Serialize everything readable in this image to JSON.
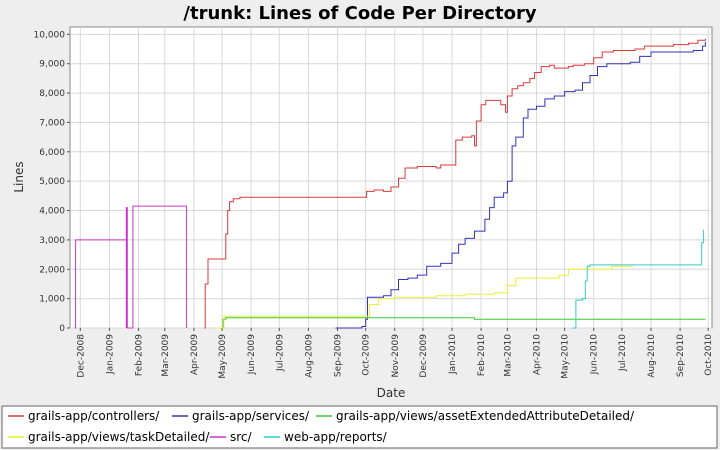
{
  "chart_data": {
    "type": "line",
    "title": "/trunk: Lines of Code Per Directory",
    "xlabel": "Date",
    "ylabel": "Lines",
    "x_range": [
      "2008-11-20",
      "2010-10-05"
    ],
    "ylim": [
      0,
      10250
    ],
    "y_ticks": [
      0,
      1000,
      2000,
      3000,
      4000,
      5000,
      6000,
      7000,
      8000,
      9000,
      10000
    ],
    "y_tick_labels": [
      "0",
      "1,000",
      "2,000",
      "3,000",
      "4,000",
      "5,000",
      "6,000",
      "7,000",
      "8,000",
      "9,000",
      "10,000"
    ],
    "x_ticks": [
      "2008-12-01",
      "2009-01-01",
      "2009-02-01",
      "2009-03-01",
      "2009-04-01",
      "2009-05-01",
      "2009-06-01",
      "2009-07-01",
      "2009-08-01",
      "2009-09-01",
      "2009-10-01",
      "2009-11-01",
      "2009-12-01",
      "2010-01-01",
      "2010-02-01",
      "2010-03-01",
      "2010-04-01",
      "2010-05-01",
      "2010-06-01",
      "2010-07-01",
      "2010-08-01",
      "2010-09-01",
      "2010-10-01"
    ],
    "x_tick_labels": [
      "Dec-2008",
      "Jan-2009",
      "Feb-2009",
      "Mar-2009",
      "Apr-2009",
      "May-2009",
      "Jun-2009",
      "Jul-2009",
      "Aug-2009",
      "Sep-2009",
      "Oct-2009",
      "Nov-2009",
      "Dec-2009",
      "Jan-2010",
      "Feb-2010",
      "Mar-2010",
      "Apr-2010",
      "May-2010",
      "Jun-2010",
      "Jul-2010",
      "Aug-2010",
      "Sep-2010",
      "Oct-2010"
    ],
    "grid": true,
    "legend_position": "bottom",
    "series": [
      {
        "name": "grails-app/controllers/",
        "color": "#d93a3a",
        "points": [
          [
            "2009-04-12",
            0
          ],
          [
            "2009-04-13",
            1500
          ],
          [
            "2009-04-16",
            2350
          ],
          [
            "2009-05-05",
            3200
          ],
          [
            "2009-05-07",
            4000
          ],
          [
            "2009-05-09",
            4300
          ],
          [
            "2009-05-13",
            4400
          ],
          [
            "2009-05-20",
            4450
          ],
          [
            "2009-09-25",
            4450
          ],
          [
            "2009-10-02",
            4650
          ],
          [
            "2009-10-10",
            4700
          ],
          [
            "2009-10-20",
            4650
          ],
          [
            "2009-10-28",
            4800
          ],
          [
            "2009-11-05",
            5100
          ],
          [
            "2009-11-12",
            5450
          ],
          [
            "2009-11-25",
            5500
          ],
          [
            "2009-12-15",
            5450
          ],
          [
            "2009-12-20",
            5550
          ],
          [
            "2010-01-02",
            5550
          ],
          [
            "2010-01-05",
            6400
          ],
          [
            "2010-01-12",
            6500
          ],
          [
            "2010-01-22",
            6550
          ],
          [
            "2010-01-25",
            6200
          ],
          [
            "2010-01-27",
            7050
          ],
          [
            "2010-02-01",
            7600
          ],
          [
            "2010-02-06",
            7750
          ],
          [
            "2010-02-18",
            7750
          ],
          [
            "2010-02-22",
            7600
          ],
          [
            "2010-02-27",
            7350
          ],
          [
            "2010-03-01",
            7900
          ],
          [
            "2010-03-06",
            8150
          ],
          [
            "2010-03-12",
            8250
          ],
          [
            "2010-03-18",
            8350
          ],
          [
            "2010-03-25",
            8500
          ],
          [
            "2010-03-30",
            8700
          ],
          [
            "2010-04-06",
            8900
          ],
          [
            "2010-04-15",
            8950
          ],
          [
            "2010-04-20",
            8850
          ],
          [
            "2010-05-05",
            8900
          ],
          [
            "2010-05-10",
            8950
          ],
          [
            "2010-05-22",
            9000
          ],
          [
            "2010-06-01",
            9200
          ],
          [
            "2010-06-10",
            9400
          ],
          [
            "2010-06-22",
            9450
          ],
          [
            "2010-07-15",
            9500
          ],
          [
            "2010-07-25",
            9600
          ],
          [
            "2010-08-20",
            9600
          ],
          [
            "2010-08-25",
            9650
          ],
          [
            "2010-09-10",
            9700
          ],
          [
            "2010-09-20",
            9800
          ],
          [
            "2010-09-28",
            9850
          ]
        ]
      },
      {
        "name": "grails-app/services/",
        "color": "#3333bb",
        "points": [
          [
            "2009-08-30",
            0
          ],
          [
            "2009-09-25",
            0
          ],
          [
            "2009-09-27",
            50
          ],
          [
            "2009-10-01",
            300
          ],
          [
            "2009-10-03",
            1050
          ],
          [
            "2009-10-20",
            1100
          ],
          [
            "2009-10-28",
            1300
          ],
          [
            "2009-11-05",
            1650
          ],
          [
            "2009-11-15",
            1700
          ],
          [
            "2009-11-25",
            1800
          ],
          [
            "2009-12-05",
            2100
          ],
          [
            "2009-12-20",
            2200
          ],
          [
            "2010-01-01",
            2550
          ],
          [
            "2010-01-08",
            2850
          ],
          [
            "2010-01-15",
            3050
          ],
          [
            "2010-01-25",
            3300
          ],
          [
            "2010-02-05",
            3700
          ],
          [
            "2010-02-10",
            4100
          ],
          [
            "2010-02-15",
            4450
          ],
          [
            "2010-02-25",
            4600
          ],
          [
            "2010-03-01",
            5000
          ],
          [
            "2010-03-06",
            6200
          ],
          [
            "2010-03-10",
            6500
          ],
          [
            "2010-03-18",
            7150
          ],
          [
            "2010-03-23",
            7450
          ],
          [
            "2010-04-01",
            7550
          ],
          [
            "2010-04-10",
            7800
          ],
          [
            "2010-04-20",
            7900
          ],
          [
            "2010-05-01",
            8050
          ],
          [
            "2010-05-12",
            8100
          ],
          [
            "2010-05-20",
            8350
          ],
          [
            "2010-05-28",
            8600
          ],
          [
            "2010-06-05",
            8900
          ],
          [
            "2010-06-15",
            9000
          ],
          [
            "2010-07-10",
            9050
          ],
          [
            "2010-07-20",
            9250
          ],
          [
            "2010-08-01",
            9400
          ],
          [
            "2010-09-15",
            9450
          ],
          [
            "2010-09-25",
            9600
          ],
          [
            "2010-09-28",
            9750
          ]
        ]
      },
      {
        "name": "grails-app/views/assetExtendedAttributeDetailed/",
        "color": "#33cc33",
        "points": [
          [
            "2009-04-28",
            0
          ],
          [
            "2009-05-02",
            300
          ],
          [
            "2009-05-05",
            350
          ],
          [
            "2010-01-20",
            350
          ],
          [
            "2010-01-25",
            300
          ],
          [
            "2010-09-28",
            300
          ]
        ]
      },
      {
        "name": "grails-app/views/taskDetailed/",
        "color": "#eeee33",
        "points": [
          [
            "2009-04-25",
            0
          ],
          [
            "2009-05-03",
            400
          ],
          [
            "2009-09-25",
            400
          ],
          [
            "2009-10-05",
            800
          ],
          [
            "2009-10-15",
            1000
          ],
          [
            "2009-11-01",
            1050
          ],
          [
            "2009-12-15",
            1100
          ],
          [
            "2010-01-15",
            1150
          ],
          [
            "2010-02-15",
            1200
          ],
          [
            "2010-03-01",
            1450
          ],
          [
            "2010-03-10",
            1700
          ],
          [
            "2010-04-10",
            1700
          ],
          [
            "2010-04-25",
            1800
          ],
          [
            "2010-05-05",
            2000
          ],
          [
            "2010-06-05",
            2000
          ],
          [
            "2010-06-20",
            2100
          ],
          [
            "2010-07-12",
            2150
          ]
        ]
      },
      {
        "name": "src/",
        "color": "#cc33cc",
        "points": [
          [
            "2008-11-25",
            0
          ],
          [
            "2008-11-26",
            3000
          ],
          [
            "2009-01-18",
            3000
          ],
          [
            "2009-01-19",
            0
          ],
          [
            "2009-01-19",
            4100
          ],
          [
            "2009-01-20",
            0
          ],
          [
            "2009-01-25",
            0
          ],
          [
            "2009-01-26",
            4150
          ],
          [
            "2009-03-23",
            4150
          ],
          [
            "2009-03-24",
            0
          ]
        ]
      },
      {
        "name": "web-app/reports/",
        "color": "#33cccc",
        "points": [
          [
            "2010-05-09",
            0
          ],
          [
            "2010-05-13",
            950
          ],
          [
            "2010-05-20",
            1000
          ],
          [
            "2010-05-23",
            1600
          ],
          [
            "2010-05-25",
            2100
          ],
          [
            "2010-05-28",
            2150
          ],
          [
            "2010-09-22",
            2150
          ],
          [
            "2010-09-24",
            2900
          ],
          [
            "2010-09-26",
            3350
          ]
        ]
      }
    ]
  }
}
